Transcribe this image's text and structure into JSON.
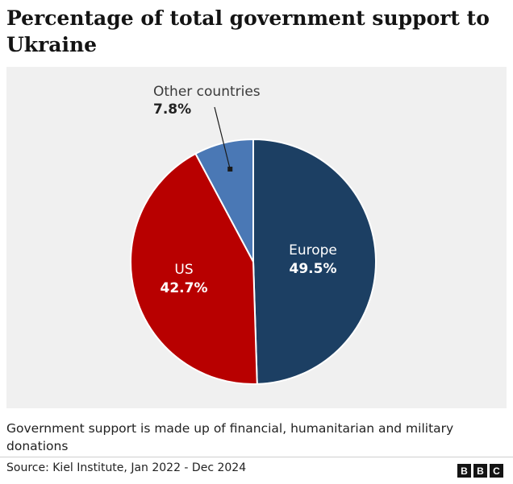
{
  "title": "Percentage of total government support to Ukraine",
  "note": "Government support is made up of financial, humanitarian and military donations",
  "source": "Source: Kiel Institute, Jan 2022 - Dec 2024",
  "logo": {
    "letters": [
      "B",
      "B",
      "C"
    ]
  },
  "chart_data": {
    "type": "pie",
    "unit": "%",
    "slices": [
      {
        "label": "Europe",
        "value": 49.5,
        "display": "49.5%",
        "color": "#1c3f63"
      },
      {
        "label": "US",
        "value": 42.7,
        "display": "42.7%",
        "color": "#b80000"
      },
      {
        "label": "Other countries",
        "value": 7.8,
        "display": "7.8%",
        "color": "#4a78b5"
      }
    ],
    "start": "12 o'clock",
    "direction": "clockwise"
  }
}
